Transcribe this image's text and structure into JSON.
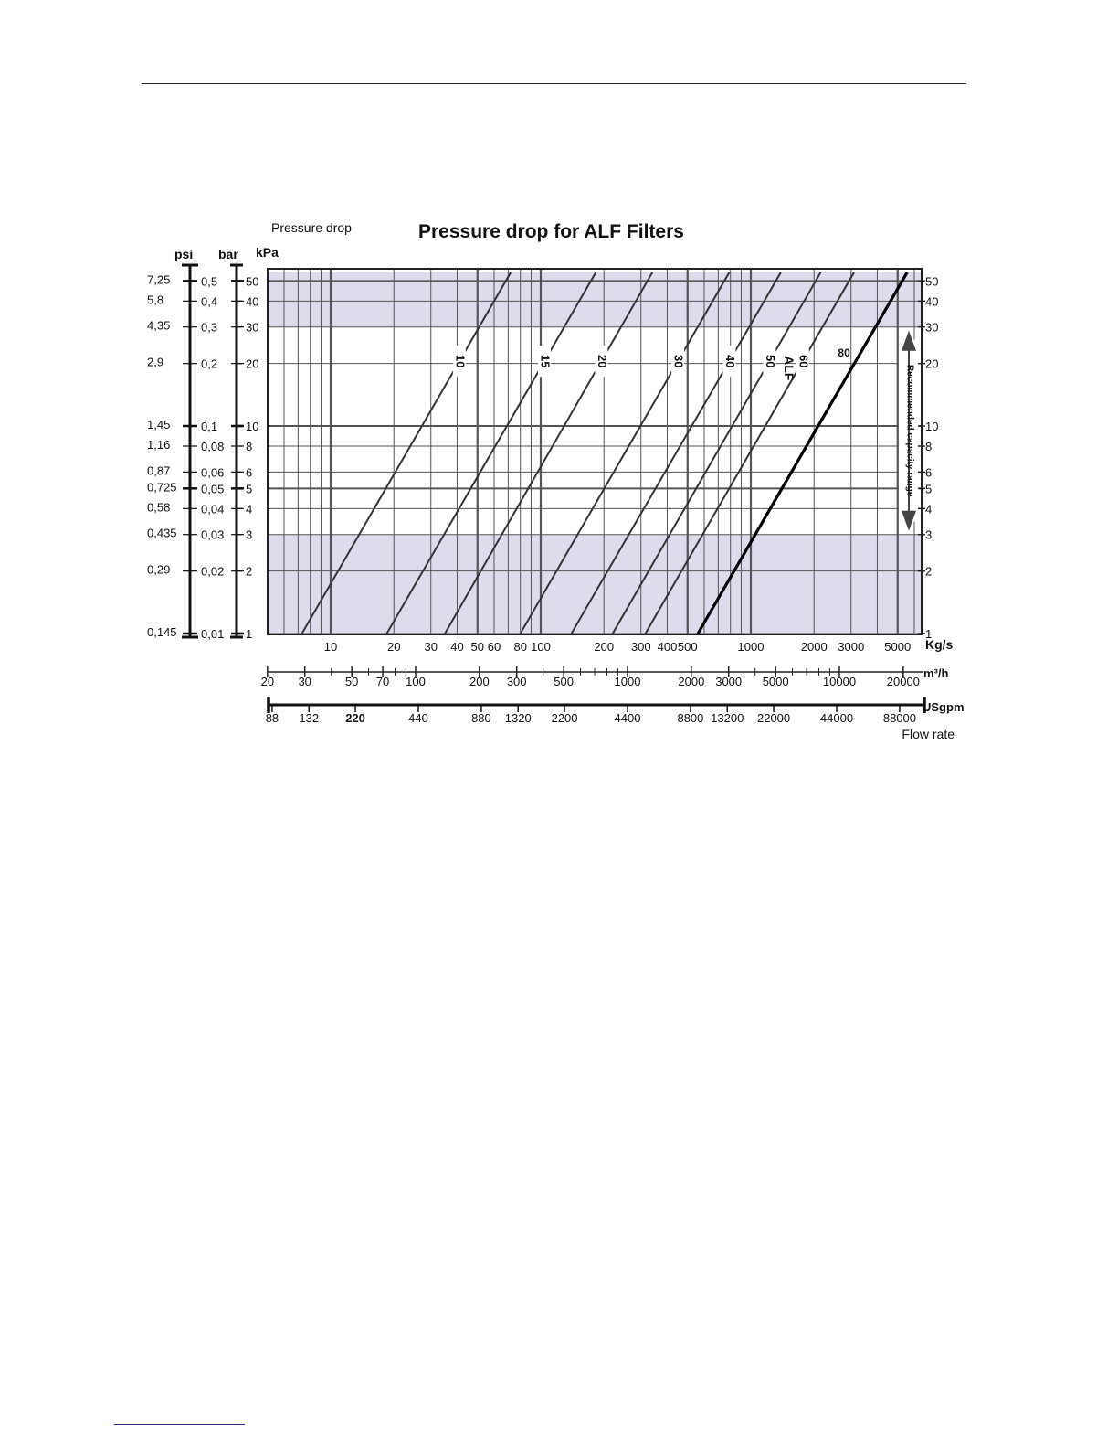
{
  "chart_data": {
    "type": "line",
    "title": "Pressure drop for ALF Filters",
    "ylabel": "Pressure drop",
    "xlabel": "Flow rate",
    "x_unit": "Kg/s",
    "x_scale": "log",
    "y_scale": "log",
    "xlim": [
      5,
      7000
    ],
    "ylim": [
      1,
      55
    ],
    "grid": true,
    "y_axes": {
      "kpa": {
        "unit": "kPa",
        "ticks": [
          50,
          40,
          30,
          20,
          10,
          8,
          6,
          5,
          4,
          3,
          2,
          1
        ]
      },
      "kpa_right": {
        "ticks": [
          50,
          40,
          30,
          20,
          10,
          8,
          6,
          5,
          4,
          3,
          2,
          1
        ]
      },
      "bar": {
        "unit": "bar",
        "ticks": [
          {
            "label": "0,5",
            "kpa": 50
          },
          {
            "label": "0,4",
            "kpa": 40
          },
          {
            "label": "0,3",
            "kpa": 30
          },
          {
            "label": "0,2",
            "kpa": 20
          },
          {
            "label": "0,1",
            "kpa": 10
          },
          {
            "label": "0,08",
            "kpa": 8
          },
          {
            "label": "0,06",
            "kpa": 6
          },
          {
            "label": "0,05",
            "kpa": 5
          },
          {
            "label": "0,04",
            "kpa": 4
          },
          {
            "label": "0,03",
            "kpa": 3
          },
          {
            "label": "0,02",
            "kpa": 2
          },
          {
            "label": "0,01",
            "kpa": 1
          }
        ]
      },
      "psi": {
        "unit": "psi",
        "ticks": [
          {
            "label": "7,25",
            "kpa": 50
          },
          {
            "label": "5,8",
            "kpa": 40
          },
          {
            "label": "4,35",
            "kpa": 30
          },
          {
            "label": "2,9",
            "kpa": 20
          },
          {
            "label": "1,45",
            "kpa": 10
          },
          {
            "label": "1,16",
            "kpa": 8
          },
          {
            "label": "0,87",
            "kpa": 6
          },
          {
            "label": "0,725",
            "kpa": 5
          },
          {
            "label": "0,58",
            "kpa": 4
          },
          {
            "label": "0,435",
            "kpa": 3
          },
          {
            "label": "0,29",
            "kpa": 2
          },
          {
            "label": "0,145",
            "kpa": 1
          }
        ]
      }
    },
    "x_axes": {
      "kgs": {
        "unit": "Kg/s",
        "ticks": [
          10,
          20,
          30,
          40,
          50,
          60,
          80,
          100,
          200,
          300,
          400,
          500,
          1000,
          2000,
          3000,
          5000
        ]
      },
      "m3h": {
        "unit": "m³/h",
        "ticks": [
          20,
          30,
          50,
          70,
          100,
          200,
          300,
          500,
          1000,
          2000,
          3000,
          5000,
          10000,
          20000
        ]
      },
      "usgpm": {
        "unit": "USgpm",
        "ticks": [
          88,
          132,
          220,
          440,
          880,
          1320,
          2200,
          4400,
          8800,
          13200,
          22000,
          44000,
          88000
        ]
      }
    },
    "series_label_prefix": "ALF",
    "series": [
      {
        "name": "10",
        "x": [
          7.3,
          72
        ],
        "y": [
          1,
          55
        ]
      },
      {
        "name": "15",
        "x": [
          18.5,
          183
        ],
        "y": [
          1,
          55
        ]
      },
      {
        "name": "20",
        "x": [
          35,
          340
        ],
        "y": [
          1,
          55
        ]
      },
      {
        "name": "30",
        "x": [
          80,
          790
        ],
        "y": [
          1,
          55
        ]
      },
      {
        "name": "40",
        "x": [
          140,
          1390
        ],
        "y": [
          1,
          55
        ]
      },
      {
        "name": "50",
        "x": [
          220,
          2150
        ],
        "y": [
          1,
          55
        ]
      },
      {
        "name": "60",
        "x": [
          315,
          3100
        ],
        "y": [
          1,
          55
        ]
      },
      {
        "name": "80",
        "x": [
          560,
          5550
        ],
        "y": [
          1,
          55
        ],
        "bold": true
      }
    ],
    "bands": [
      {
        "from": 30,
        "to": 55
      },
      {
        "from": 1,
        "to": 3
      }
    ],
    "annotations": {
      "range_text": "Recommended capacity range",
      "range_from": 3,
      "range_to": 30
    },
    "colors": {
      "band": "#dcdcec",
      "grid": "#555555",
      "line": "#333333",
      "bold_line": "#000000"
    }
  }
}
